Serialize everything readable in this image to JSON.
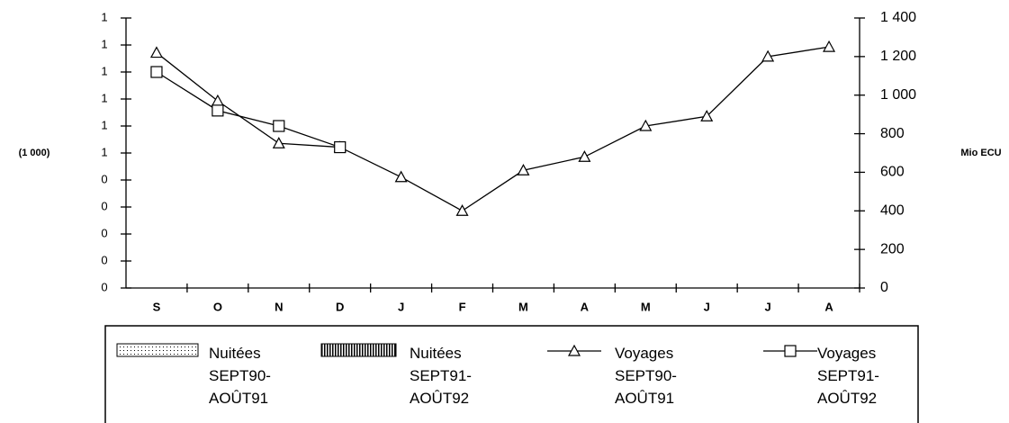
{
  "chart_data": {
    "type": "line",
    "categories": [
      "S",
      "O",
      "N",
      "D",
      "J",
      "F",
      "M",
      "A",
      "M",
      "J",
      "J",
      "A"
    ],
    "ylabel": "(1 000)",
    "y2label": "Mio ECU",
    "ylim": [
      0,
      10
    ],
    "yticks": [
      {
        "value": 0,
        "label": "0"
      },
      {
        "value": 1,
        "label": "0"
      },
      {
        "value": 2,
        "label": "0"
      },
      {
        "value": 3,
        "label": "0"
      },
      {
        "value": 4,
        "label": "0"
      },
      {
        "value": 5,
        "label": "1"
      },
      {
        "value": 6,
        "label": "1"
      },
      {
        "value": 7,
        "label": "1"
      },
      {
        "value": 8,
        "label": "1"
      },
      {
        "value": 9,
        "label": "1"
      },
      {
        "value": 10,
        "label": "1"
      }
    ],
    "y2lim": [
      0,
      1400
    ],
    "y2ticks": [
      0,
      200,
      400,
      600,
      800,
      {
        "value": 1000,
        "label": "1 000"
      },
      {
        "value": 1200,
        "label": "1 200"
      },
      {
        "value": 1400,
        "label": "1 400"
      }
    ],
    "series": [
      {
        "name": "Nuitées SEPT90-AOÛT91",
        "kind": "bar",
        "pattern": "dotted",
        "values": [
          null,
          null,
          null,
          null,
          null,
          null,
          null,
          null,
          null,
          null,
          null,
          null
        ]
      },
      {
        "name": "Nuitées SEPT91-AOÛT92",
        "kind": "bar",
        "pattern": "hatched",
        "values": [
          null,
          null,
          null,
          null,
          null,
          null,
          null,
          null,
          null,
          null,
          null,
          null
        ]
      },
      {
        "name": "Voyages SEPT90-AOÛT91",
        "kind": "line",
        "marker": "triangle",
        "axis": "y2",
        "color": "#000000",
        "values": [
          1220,
          970,
          750,
          730,
          575,
          400,
          610,
          680,
          840,
          890,
          1200,
          1250
        ]
      },
      {
        "name": "Voyages SEPT91-AOÛT92",
        "kind": "line",
        "marker": "square",
        "axis": "y2",
        "color": "#000000",
        "values": [
          1120,
          920,
          840,
          730,
          null,
          null,
          null,
          null,
          null,
          null,
          null,
          null
        ]
      }
    ]
  }
}
